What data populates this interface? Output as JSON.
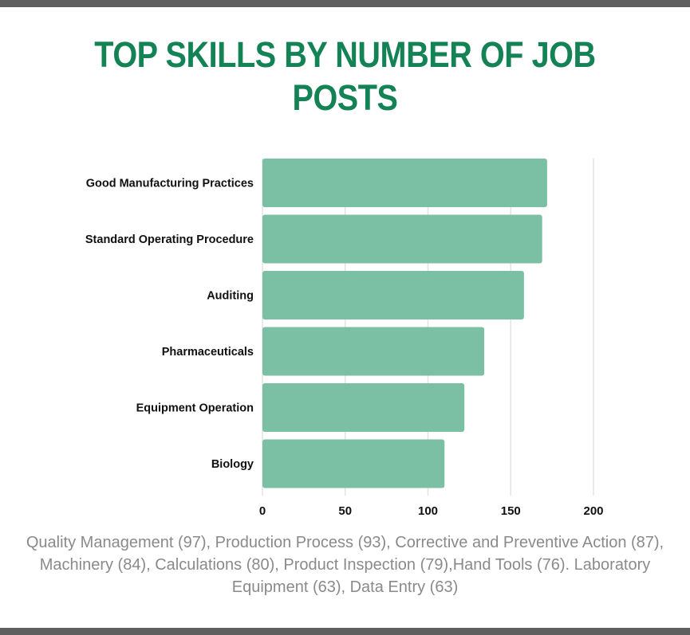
{
  "title": "TOP SKILLS BY NUMBER OF JOB POSTS",
  "colors": {
    "title": "#138254",
    "bar": "#7bbfa5",
    "grid": "#e3e3e3",
    "rule": "#5f5f5f",
    "note": "#8a8a8a"
  },
  "chart_data": {
    "type": "bar",
    "orientation": "horizontal",
    "categories": [
      "Good Manufacturing Practices",
      "Standard Operating Procedure",
      "Auditing",
      "Pharmaceuticals",
      "Equipment Operation",
      "Biology"
    ],
    "values": [
      172,
      169,
      158,
      134,
      122,
      110
    ],
    "xlim": [
      0,
      200
    ],
    "xticks": [
      "0",
      "50",
      "100",
      "150",
      "200"
    ],
    "grid": true,
    "title": "TOP SKILLS BY NUMBER OF JOB POSTS",
    "xlabel": "",
    "ylabel": ""
  },
  "note": "Quality Management (97), Production Process (93), Corrective and Preventive Action (87), Machinery (84), Calculations (80), Product Inspection (79),Hand Tools (76). Laboratory Equipment (63), Data Entry (63)"
}
